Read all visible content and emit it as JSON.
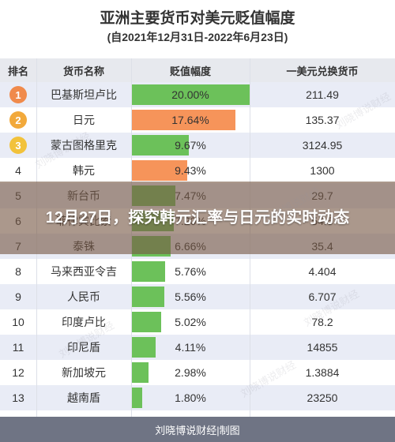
{
  "title": "亚洲主要货币对美元贬值幅度",
  "subtitle": "(自2021年12月31日-2022年6月23日)",
  "headers": {
    "rank": "排名",
    "name": "货币名称",
    "pct": "贬值幅度",
    "rate": "一美元兑换货币"
  },
  "overlay_text": "12月27日，探究韩元汇率与日元的实时动态",
  "footer": "刘晓博说财经|制图",
  "watermark": "刘晓博说财经",
  "colors": {
    "green": "#6cc15a",
    "orange": "#f6945a",
    "gold": "#f2a93b",
    "header_bg": "#e7e9ee",
    "alt_row": "#e9ecf6"
  },
  "chart_data": {
    "type": "table",
    "title": "亚洲主要货币对美元贬值幅度",
    "subtitle": "(自2021年12月31日-2022年6月23日)",
    "columns": [
      "排名",
      "货币名称",
      "贬值幅度",
      "一美元兑换货币"
    ],
    "rows": [
      {
        "rank": "1",
        "name": "巴基斯坦卢比",
        "pct": 20.0,
        "pct_label": "20.00%",
        "rate": "211.49",
        "bar": "green"
      },
      {
        "rank": "2",
        "name": "日元",
        "pct": 17.64,
        "pct_label": "17.64%",
        "rate": "135.37",
        "bar": "orange"
      },
      {
        "rank": "3",
        "name": "蒙古图格里克",
        "pct": 9.67,
        "pct_label": "9.67%",
        "rate": "3124.95",
        "bar": "green"
      },
      {
        "rank": "4",
        "name": "韩元",
        "pct": 9.43,
        "pct_label": "9.43%",
        "rate": "1300",
        "bar": "orange"
      },
      {
        "rank": "5",
        "name": "新台币",
        "pct": 7.47,
        "pct_label": "7.47%",
        "rate": "29.7",
        "bar": "green"
      },
      {
        "rank": "6",
        "name": "菲律宾比索",
        "pct": 7.2,
        "pct_label": "7.20%",
        "rate": "54.5",
        "bar": "green"
      },
      {
        "rank": "7",
        "name": "泰铢",
        "pct": 6.66,
        "pct_label": "6.66%",
        "rate": "35.4",
        "bar": "green"
      },
      {
        "rank": "8",
        "name": "马来西亚令吉",
        "pct": 5.76,
        "pct_label": "5.76%",
        "rate": "4.404",
        "bar": "green"
      },
      {
        "rank": "9",
        "name": "人民币",
        "pct": 5.56,
        "pct_label": "5.56%",
        "rate": "6.707",
        "bar": "green"
      },
      {
        "rank": "10",
        "name": "印度卢比",
        "pct": 5.02,
        "pct_label": "5.02%",
        "rate": "78.2",
        "bar": "green"
      },
      {
        "rank": "11",
        "name": "印尼盾",
        "pct": 4.11,
        "pct_label": "4.11%",
        "rate": "14855",
        "bar": "green"
      },
      {
        "rank": "12",
        "name": "新加坡元",
        "pct": 2.98,
        "pct_label": "2.98%",
        "rate": "1.3884",
        "bar": "green"
      },
      {
        "rank": "13",
        "name": "越南盾",
        "pct": 1.8,
        "pct_label": "1.80%",
        "rate": "23250",
        "bar": "green"
      }
    ]
  }
}
